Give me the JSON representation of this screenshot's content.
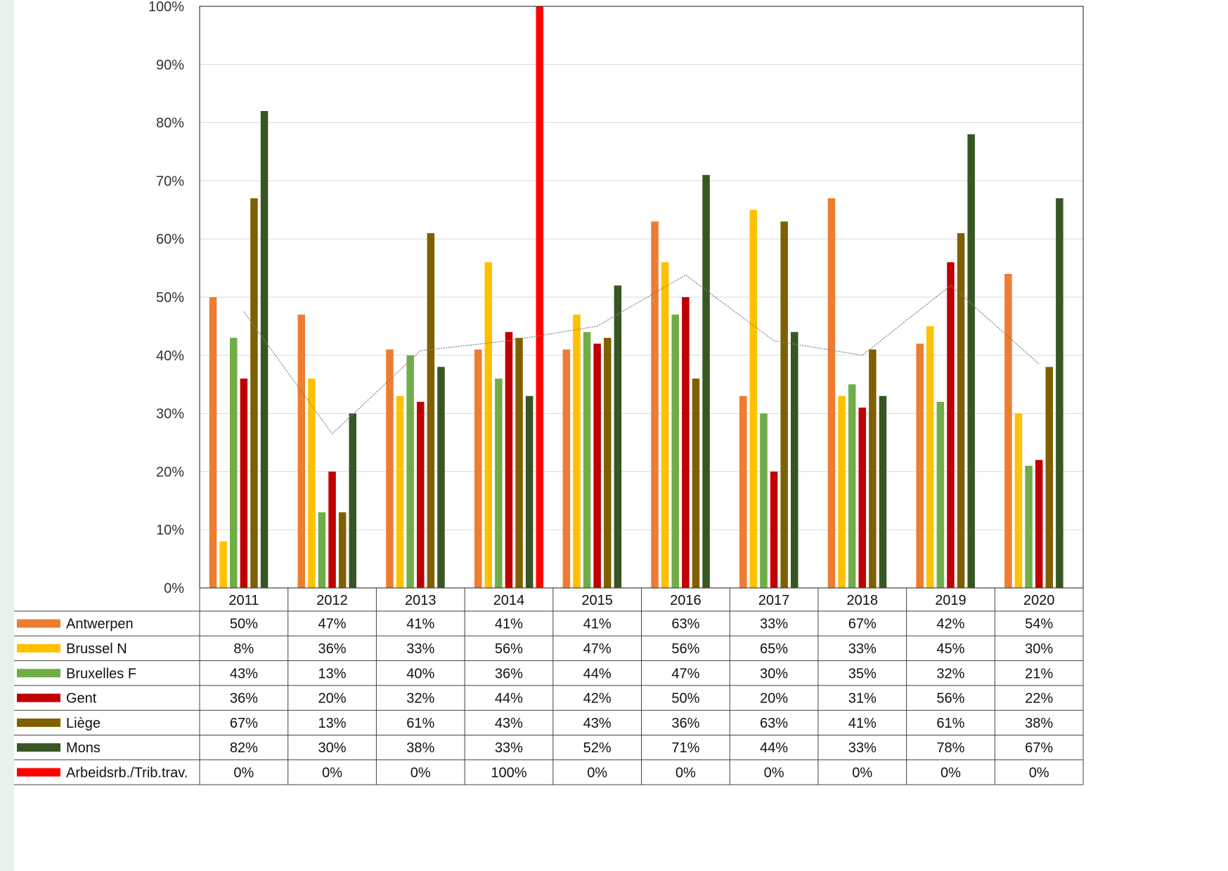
{
  "chart_data": {
    "type": "bar",
    "title": "",
    "xlabel": "",
    "ylabel": "",
    "ylim": [
      0,
      100
    ],
    "y_ticks": [
      "0%",
      "10%",
      "20%",
      "30%",
      "40%",
      "50%",
      "60%",
      "70%",
      "80%",
      "90%",
      "100%"
    ],
    "grid": true,
    "legend": "data table below chart",
    "categories": [
      "2011",
      "2012",
      "2013",
      "2014",
      "2015",
      "2016",
      "2017",
      "2018",
      "2019",
      "2020"
    ],
    "series": [
      {
        "name": "Antwerpen",
        "color": "#ED7D31",
        "values": [
          50,
          47,
          41,
          41,
          41,
          63,
          33,
          67,
          42,
          54
        ],
        "labels": [
          "50%",
          "47%",
          "41%",
          "41%",
          "41%",
          "63%",
          "33%",
          "67%",
          "42%",
          "54%"
        ]
      },
      {
        "name": "Brussel N",
        "color": "#FFC000",
        "values": [
          8,
          36,
          33,
          56,
          47,
          56,
          65,
          33,
          45,
          30
        ],
        "labels": [
          "8%",
          "36%",
          "33%",
          "56%",
          "47%",
          "56%",
          "65%",
          "33%",
          "45%",
          "30%"
        ]
      },
      {
        "name": "Bruxelles F",
        "color": "#70AD47",
        "values": [
          43,
          13,
          40,
          36,
          44,
          47,
          30,
          35,
          32,
          21
        ],
        "labels": [
          "43%",
          "13%",
          "40%",
          "36%",
          "44%",
          "47%",
          "30%",
          "35%",
          "32%",
          "21%"
        ]
      },
      {
        "name": "Gent",
        "color": "#C00000",
        "values": [
          36,
          20,
          32,
          44,
          42,
          50,
          20,
          31,
          56,
          22
        ],
        "labels": [
          "36%",
          "20%",
          "32%",
          "44%",
          "42%",
          "50%",
          "20%",
          "31%",
          "56%",
          "22%"
        ]
      },
      {
        "name": "Liège",
        "color": "#7F6000",
        "values": [
          67,
          13,
          61,
          43,
          43,
          36,
          63,
          41,
          61,
          38
        ],
        "labels": [
          "67%",
          "13%",
          "61%",
          "43%",
          "43%",
          "36%",
          "63%",
          "41%",
          "61%",
          "38%"
        ]
      },
      {
        "name": "Mons",
        "color": "#375623",
        "values": [
          82,
          30,
          38,
          33,
          52,
          71,
          44,
          33,
          78,
          67
        ],
        "labels": [
          "82%",
          "30%",
          "38%",
          "33%",
          "52%",
          "71%",
          "44%",
          "33%",
          "78%",
          "67%"
        ]
      },
      {
        "name": "Arbeidsrb./Trib.trav.",
        "color": "#FF0000",
        "values": [
          0,
          0,
          0,
          100,
          0,
          0,
          0,
          0,
          0,
          0
        ],
        "labels": [
          "0%",
          "0%",
          "0%",
          "100%",
          "0%",
          "0%",
          "0%",
          "0%",
          "0%",
          "0%"
        ]
      }
    ],
    "trendline": {
      "color": "#7f7f7f",
      "values": [
        47.5,
        26.5,
        40.8,
        42.5,
        45.0,
        53.8,
        42.5,
        40.0,
        52.0,
        38.5
      ]
    }
  }
}
